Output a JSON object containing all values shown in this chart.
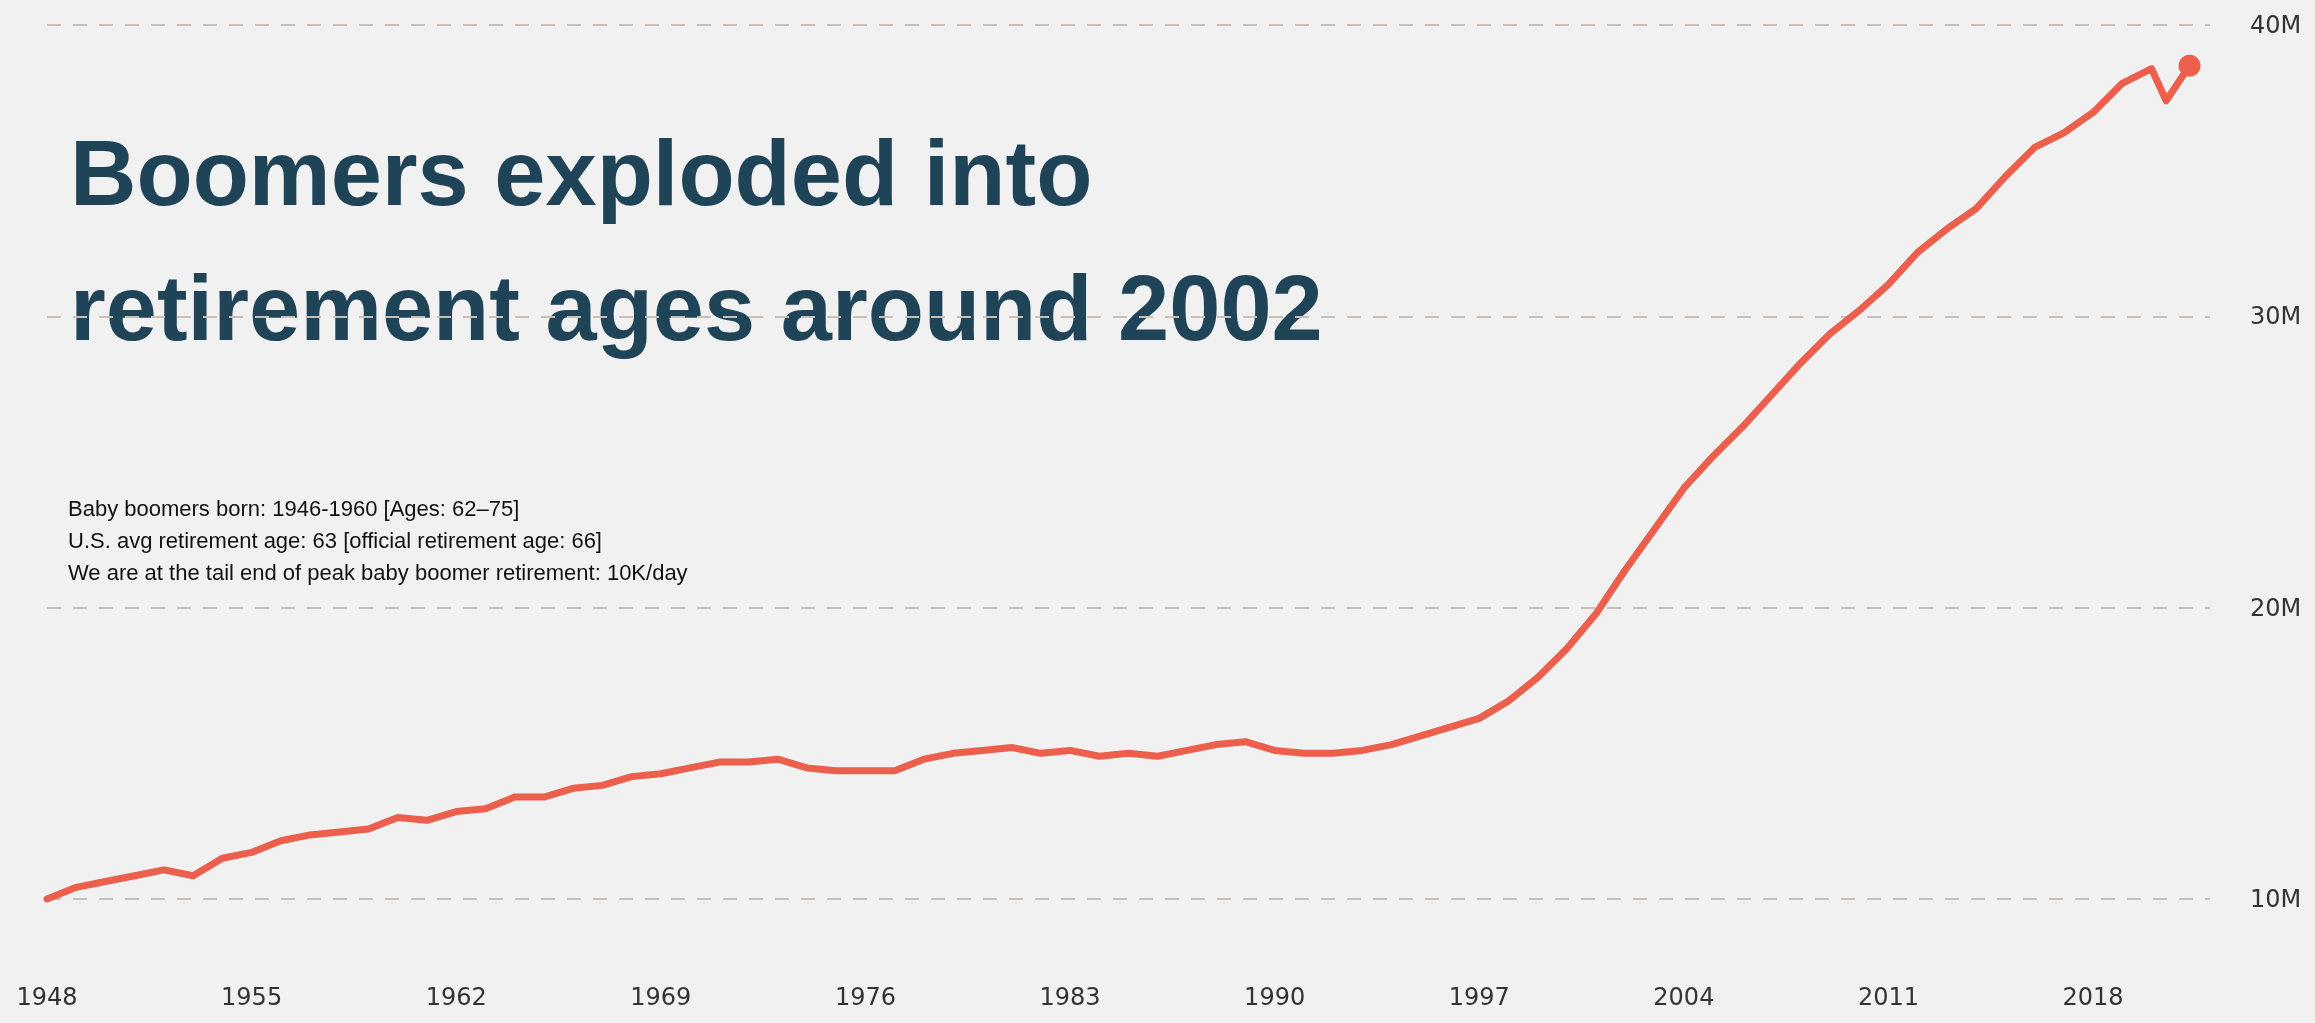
{
  "chart_data": {
    "type": "line",
    "title": "Boomers exploded into retirement ages around 2002",
    "annotations": [
      "Baby boomers born: 1946-1960 [Ages: 62–75]",
      "U.S. avg retirement age: 63 [official retirement age: 66]",
      "We are at the tail end of peak baby boomer retirement: 10K/day"
    ],
    "x": [
      1948,
      1949,
      1950,
      1951,
      1952,
      1953,
      1954,
      1955,
      1956,
      1957,
      1958,
      1959,
      1960,
      1961,
      1962,
      1963,
      1964,
      1965,
      1966,
      1967,
      1968,
      1969,
      1970,
      1971,
      1972,
      1973,
      1974,
      1975,
      1976,
      1977,
      1978,
      1979,
      1980,
      1981,
      1982,
      1983,
      1984,
      1985,
      1986,
      1987,
      1988,
      1989,
      1990,
      1991,
      1992,
      1993,
      1994,
      1995,
      1996,
      1997,
      1998,
      1999,
      2000,
      2001,
      2002,
      2003,
      2004,
      2005,
      2006,
      2007,
      2008,
      2009,
      2010,
      2011,
      2012,
      2013,
      2014,
      2015,
      2016,
      2017,
      2018,
      2019,
      2020,
      2020.5,
      2021.3
    ],
    "series": [
      {
        "color": "#ec5f4c",
        "values": [
          10.0,
          10.4,
          10.6,
          10.8,
          11.0,
          10.8,
          11.4,
          11.6,
          12.0,
          12.2,
          12.3,
          12.4,
          12.8,
          12.7,
          13.0,
          13.1,
          13.5,
          13.5,
          13.8,
          13.9,
          14.2,
          14.3,
          14.5,
          14.7,
          14.7,
          14.8,
          14.5,
          14.4,
          14.4,
          14.4,
          14.8,
          15.0,
          15.1,
          15.2,
          15.0,
          15.1,
          14.9,
          15.0,
          14.9,
          15.1,
          15.3,
          15.4,
          15.1,
          15.0,
          15.0,
          15.1,
          15.3,
          15.6,
          15.9,
          16.2,
          16.8,
          17.6,
          18.6,
          19.8,
          21.3,
          22.7,
          24.1,
          25.2,
          26.2,
          27.3,
          28.4,
          29.4,
          30.2,
          31.1,
          32.2,
          33.0,
          33.7,
          34.8,
          35.8,
          36.3,
          37.0,
          38.0,
          38.5,
          37.4,
          38.6
        ]
      }
    ],
    "xlim": [
      1948,
      2022
    ],
    "xticks": [
      1948,
      1955,
      1962,
      1969,
      1976,
      1983,
      1990,
      1997,
      2004,
      2011,
      2018
    ],
    "ylim": [
      10,
      40
    ],
    "yticks": [
      {
        "value": 10,
        "label": "10M"
      },
      {
        "value": 20,
        "label": "20M"
      },
      {
        "value": 30,
        "label": "30M"
      },
      {
        "value": 40,
        "label": "40M"
      }
    ],
    "grid": "y"
  }
}
